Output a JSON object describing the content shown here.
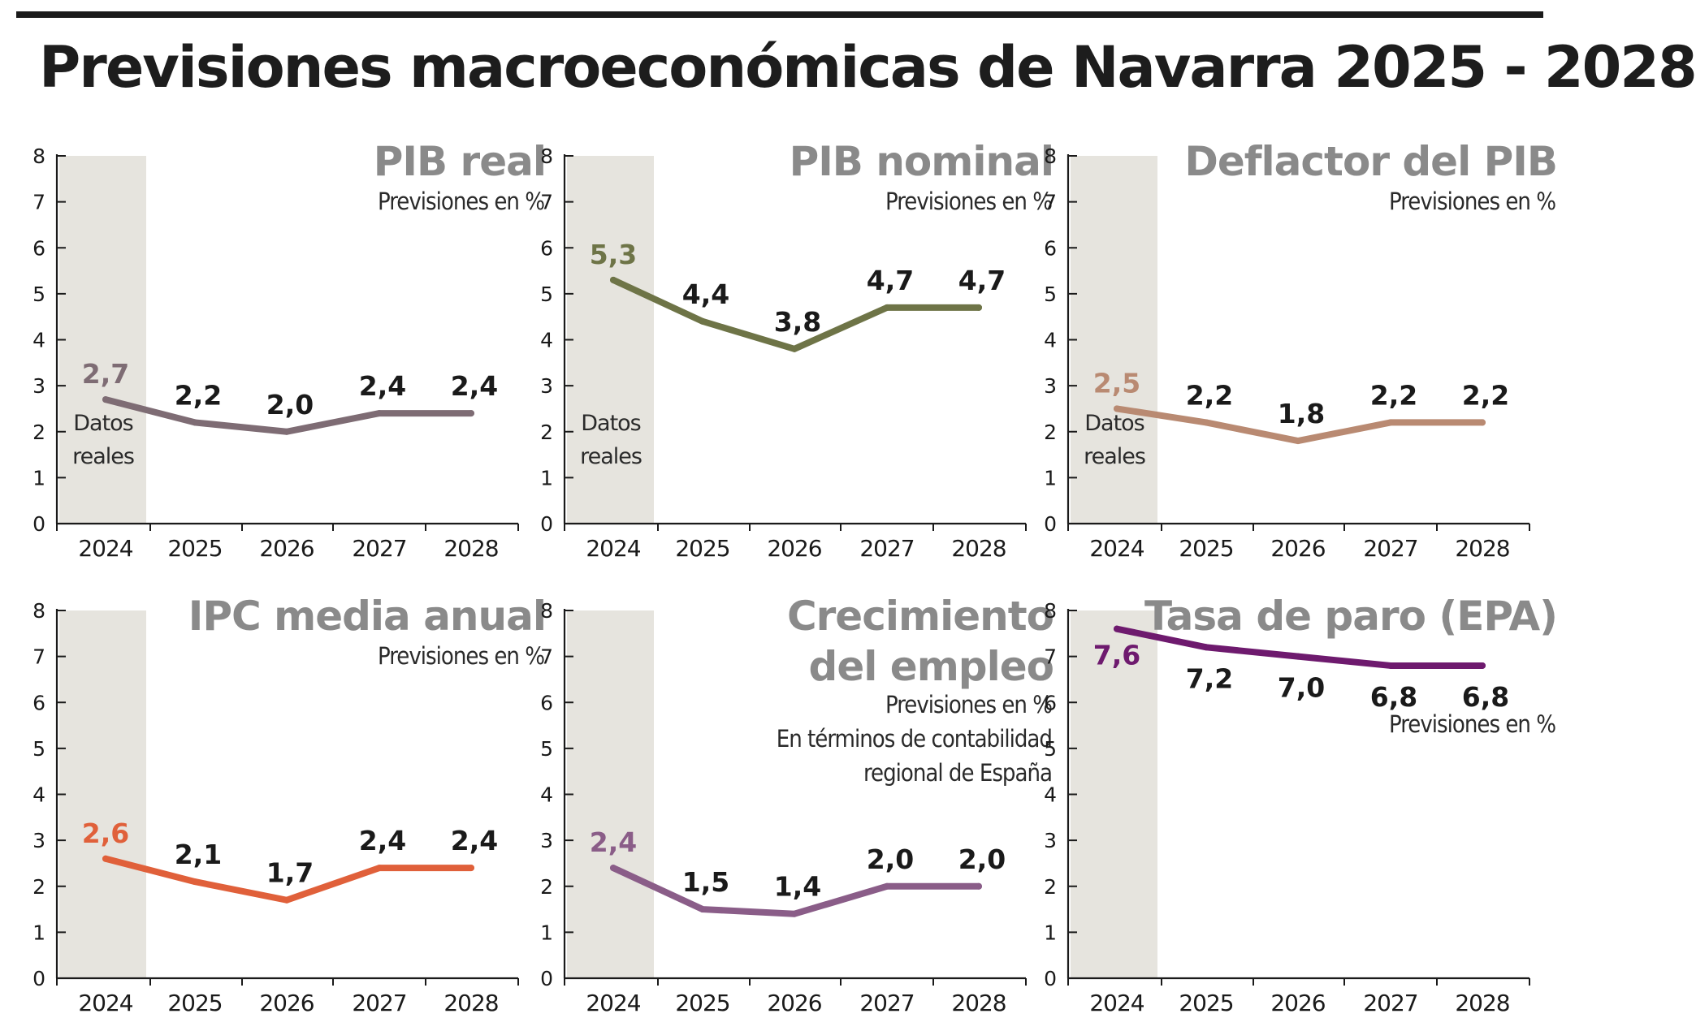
{
  "header": {
    "title": "Previsiones macroeconómicas de Navarra 2025 - 2028"
  },
  "chart_data": [
    {
      "type": "line",
      "title": "PIB real",
      "subtitle": [
        "Previsiones en %"
      ],
      "shaded_label": [
        "Datos",
        "reales"
      ],
      "color": "#7e6c74",
      "categories": [
        "2024",
        "2025",
        "2026",
        "2027",
        "2028"
      ],
      "values": [
        2.7,
        2.2,
        2.0,
        2.4,
        2.4
      ],
      "value_labels": [
        "2,7",
        "2,2",
        "2,0",
        "2,4",
        "2,4"
      ],
      "yticks": [
        "0",
        "1",
        "2",
        "3",
        "4",
        "5",
        "6",
        "7",
        "8"
      ],
      "ylim": [
        0,
        8
      ]
    },
    {
      "type": "line",
      "title": "PIB nominal",
      "subtitle": [
        "Previsiones en %"
      ],
      "shaded_label": [
        "Datos",
        "reales"
      ],
      "color": "#6e7447",
      "categories": [
        "2024",
        "2025",
        "2026",
        "2027",
        "2028"
      ],
      "values": [
        5.3,
        4.4,
        3.8,
        4.7,
        4.7
      ],
      "value_labels": [
        "5,3",
        "4,4",
        "3,8",
        "4,7",
        "4,7"
      ],
      "yticks": [
        "0",
        "1",
        "2",
        "3",
        "4",
        "5",
        "6",
        "7",
        "8"
      ],
      "ylim": [
        0,
        8
      ]
    },
    {
      "type": "line",
      "title": "Deflactor del PIB",
      "subtitle": [
        "Previsiones en %"
      ],
      "shaded_label": [
        "Datos",
        "reales"
      ],
      "color": "#b98a72",
      "categories": [
        "2024",
        "2025",
        "2026",
        "2027",
        "2028"
      ],
      "values": [
        2.5,
        2.2,
        1.8,
        2.2,
        2.2
      ],
      "value_labels": [
        "2,5",
        "2,2",
        "1,8",
        "2,2",
        "2,2"
      ],
      "yticks": [
        "0",
        "1",
        "2",
        "3",
        "4",
        "5",
        "6",
        "7",
        "8"
      ],
      "ylim": [
        0,
        8
      ]
    },
    {
      "type": "line",
      "title": "IPC media anual",
      "subtitle": [
        "Previsiones en %"
      ],
      "shaded_label": [],
      "color": "#e0603a",
      "categories": [
        "2024",
        "2025",
        "2026",
        "2027",
        "2028"
      ],
      "values": [
        2.6,
        2.1,
        1.7,
        2.4,
        2.4
      ],
      "value_labels": [
        "2,6",
        "2,1",
        "1,7",
        "2,4",
        "2,4"
      ],
      "yticks": [
        "0",
        "1",
        "2",
        "3",
        "4",
        "5",
        "6",
        "7",
        "8"
      ],
      "ylim": [
        0,
        8
      ]
    },
    {
      "type": "line",
      "title": [
        "Crecimiento",
        "del empleo"
      ],
      "subtitle": [
        "Previsiones en %",
        "En términos de contabilidad",
        "regional de España"
      ],
      "shaded_label": [],
      "color": "#8a5d88",
      "categories": [
        "2024",
        "2025",
        "2026",
        "2027",
        "2028"
      ],
      "values": [
        2.4,
        1.5,
        1.4,
        2.0,
        2.0
      ],
      "value_labels": [
        "2,4",
        "1,5",
        "1,4",
        "2,0",
        "2,0"
      ],
      "yticks": [
        "0",
        "1",
        "2",
        "3",
        "4",
        "5",
        "6",
        "7",
        "8"
      ],
      "ylim": [
        0,
        8
      ]
    },
    {
      "type": "line",
      "title": "Tasa de paro (EPA)",
      "subtitle": [
        "Previsiones en %"
      ],
      "shaded_label": [],
      "color": "#6e1a6e",
      "categories": [
        "2024",
        "2025",
        "2026",
        "2027",
        "2028"
      ],
      "values": [
        7.6,
        7.2,
        7.0,
        6.8,
        6.8
      ],
      "value_labels": [
        "7,6",
        "7,2",
        "7,0",
        "6,8",
        "6,8"
      ],
      "yticks": [
        "0",
        "1",
        "2",
        "3",
        "4",
        "5",
        "6",
        "7",
        "8"
      ],
      "ylim": [
        0,
        8
      ]
    }
  ]
}
